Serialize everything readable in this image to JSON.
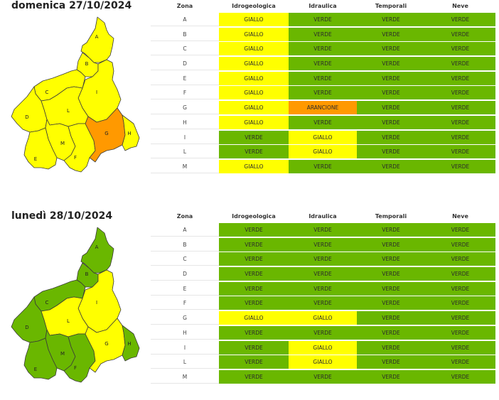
{
  "columns": [
    "Zona",
    "Idrogeologica",
    "Idraulica",
    "Temporali",
    "Neve"
  ],
  "colors": {
    "GIALLO": "#ffff00",
    "VERDE": "#6ab700",
    "ARANCIONE": "#ff9900"
  },
  "days": [
    {
      "title": "domenica 27/10/2024",
      "map_zones": {
        "A": "GIALLO",
        "B": "GIALLO",
        "C": "GIALLO",
        "D": "GIALLO",
        "E": "GIALLO",
        "F": "GIALLO",
        "G": "ARANCIONE",
        "H": "GIALLO",
        "I": "GIALLO",
        "L": "GIALLO",
        "M": "GIALLO"
      },
      "rows": [
        {
          "zona": "A",
          "idrogeologica": "GIALLO",
          "idraulica": "VERDE",
          "temporali": "VERDE",
          "neve": "VERDE"
        },
        {
          "zona": "B",
          "idrogeologica": "GIALLO",
          "idraulica": "VERDE",
          "temporali": "VERDE",
          "neve": "VERDE"
        },
        {
          "zona": "C",
          "idrogeologica": "GIALLO",
          "idraulica": "VERDE",
          "temporali": "VERDE",
          "neve": "VERDE"
        },
        {
          "zona": "D",
          "idrogeologica": "GIALLO",
          "idraulica": "VERDE",
          "temporali": "VERDE",
          "neve": "VERDE"
        },
        {
          "zona": "E",
          "idrogeologica": "GIALLO",
          "idraulica": "VERDE",
          "temporali": "VERDE",
          "neve": "VERDE"
        },
        {
          "zona": "F",
          "idrogeologica": "GIALLO",
          "idraulica": "VERDE",
          "temporali": "VERDE",
          "neve": "VERDE"
        },
        {
          "zona": "G",
          "idrogeologica": "GIALLO",
          "idraulica": "ARANCIONE",
          "temporali": "VERDE",
          "neve": "VERDE"
        },
        {
          "zona": "H",
          "idrogeologica": "GIALLO",
          "idraulica": "VERDE",
          "temporali": "VERDE",
          "neve": "VERDE"
        },
        {
          "zona": "I",
          "idrogeologica": "VERDE",
          "idraulica": "GIALLO",
          "temporali": "VERDE",
          "neve": "VERDE"
        },
        {
          "zona": "L",
          "idrogeologica": "VERDE",
          "idraulica": "GIALLO",
          "temporali": "VERDE",
          "neve": "VERDE"
        },
        {
          "zona": "M",
          "idrogeologica": "GIALLO",
          "idraulica": "VERDE",
          "temporali": "VERDE",
          "neve": "VERDE"
        }
      ]
    },
    {
      "title": "lunedì 28/10/2024",
      "map_zones": {
        "A": "VERDE",
        "B": "VERDE",
        "C": "VERDE",
        "D": "VERDE",
        "E": "VERDE",
        "F": "VERDE",
        "G": "GIALLO",
        "H": "VERDE",
        "I": "GIALLO",
        "L": "GIALLO",
        "M": "VERDE"
      },
      "rows": [
        {
          "zona": "A",
          "idrogeologica": "VERDE",
          "idraulica": "VERDE",
          "temporali": "VERDE",
          "neve": "VERDE"
        },
        {
          "zona": "B",
          "idrogeologica": "VERDE",
          "idraulica": "VERDE",
          "temporali": "VERDE",
          "neve": "VERDE"
        },
        {
          "zona": "C",
          "idrogeologica": "VERDE",
          "idraulica": "VERDE",
          "temporali": "VERDE",
          "neve": "VERDE"
        },
        {
          "zona": "D",
          "idrogeologica": "VERDE",
          "idraulica": "VERDE",
          "temporali": "VERDE",
          "neve": "VERDE"
        },
        {
          "zona": "E",
          "idrogeologica": "VERDE",
          "idraulica": "VERDE",
          "temporali": "VERDE",
          "neve": "VERDE"
        },
        {
          "zona": "F",
          "idrogeologica": "VERDE",
          "idraulica": "VERDE",
          "temporali": "VERDE",
          "neve": "VERDE"
        },
        {
          "zona": "G",
          "idrogeologica": "GIALLO",
          "idraulica": "GIALLO",
          "temporali": "VERDE",
          "neve": "VERDE"
        },
        {
          "zona": "H",
          "idrogeologica": "VERDE",
          "idraulica": "VERDE",
          "temporali": "VERDE",
          "neve": "VERDE"
        },
        {
          "zona": "I",
          "idrogeologica": "VERDE",
          "idraulica": "GIALLO",
          "temporali": "VERDE",
          "neve": "VERDE"
        },
        {
          "zona": "L",
          "idrogeologica": "VERDE",
          "idraulica": "GIALLO",
          "temporali": "VERDE",
          "neve": "VERDE"
        },
        {
          "zona": "M",
          "idrogeologica": "VERDE",
          "idraulica": "VERDE",
          "temporali": "VERDE",
          "neve": "VERDE"
        }
      ]
    }
  ]
}
